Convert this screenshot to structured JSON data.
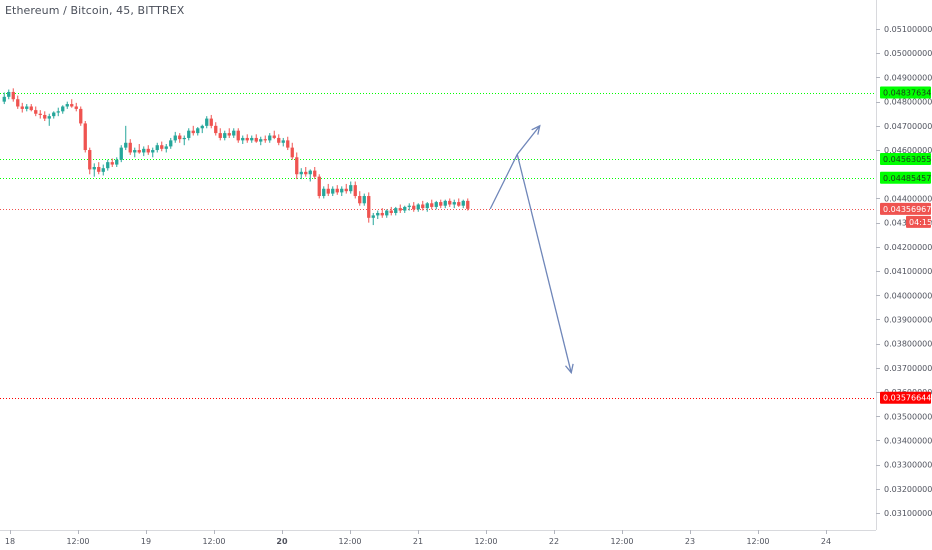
{
  "header": {
    "title": "Ethereum / Bitcoin, 45, BITTREX"
  },
  "colors": {
    "up": "#26a69a",
    "down": "#ef5350",
    "green_level": "#00ff00",
    "red_level": "#ff0000",
    "last_price": "#ef5350",
    "projection": "#6f86b9"
  },
  "chart_data": {
    "type": "candlestick",
    "title": "Ethereum / Bitcoin, 45, BITTREX",
    "ylim": [
      0.0303,
      0.0522
    ],
    "y_ticks": [
      "0.05100000",
      "0.05000000",
      "0.04900000",
      "0.04800000",
      "0.04700000",
      "0.04600000",
      "0.04400000",
      "0.04300000",
      "0.04200000",
      "0.04100000",
      "0.04000000",
      "0.03900000",
      "0.03800000",
      "0.03700000",
      "0.03600000",
      "0.03500000",
      "0.03400000",
      "0.03300000",
      "0.03200000",
      "0.03100000"
    ],
    "x_ticks": [
      {
        "label": "18",
        "bold": false
      },
      {
        "label": "12:00",
        "bold": false
      },
      {
        "label": "19",
        "bold": false
      },
      {
        "label": "12:00",
        "bold": false
      },
      {
        "label": "20",
        "bold": true
      },
      {
        "label": "12:00",
        "bold": false
      },
      {
        "label": "21",
        "bold": false
      },
      {
        "label": "12:00",
        "bold": false
      },
      {
        "label": "22",
        "bold": false
      },
      {
        "label": "12:00",
        "bold": false
      },
      {
        "label": "23",
        "bold": false
      },
      {
        "label": "12:00",
        "bold": false
      },
      {
        "label": "24",
        "bold": false
      }
    ],
    "horizontal_levels": [
      {
        "value": "0.04837634",
        "numeric": 0.04837634,
        "color": "green"
      },
      {
        "value": "0.04563055",
        "numeric": 0.04563055,
        "color": "green"
      },
      {
        "value": "0.04485457",
        "numeric": 0.04485457,
        "color": "green"
      },
      {
        "value": "0.03576644",
        "numeric": 0.03576644,
        "color": "red"
      }
    ],
    "last_price": {
      "value": "0.04356967",
      "numeric": 0.04356967,
      "countdown": "04:15"
    },
    "projection_path": [
      {
        "bar": 108,
        "price": 0.04357
      },
      {
        "bar": 114,
        "price": 0.04582
      },
      {
        "bar": 119,
        "price": 0.047
      },
      {
        "bar": 114,
        "price": 0.04582
      },
      {
        "bar": 126,
        "price": 0.0368
      }
    ],
    "series": [
      {
        "o": 0.048,
        "h": 0.04838,
        "l": 0.0479,
        "c": 0.0482
      },
      {
        "o": 0.0482,
        "h": 0.0485,
        "l": 0.0481,
        "c": 0.0484
      },
      {
        "o": 0.0484,
        "h": 0.04855,
        "l": 0.048,
        "c": 0.0481
      },
      {
        "o": 0.0481,
        "h": 0.04825,
        "l": 0.0477,
        "c": 0.0478
      },
      {
        "o": 0.0478,
        "h": 0.04795,
        "l": 0.04755,
        "c": 0.0477
      },
      {
        "o": 0.0477,
        "h": 0.0479,
        "l": 0.0476,
        "c": 0.0478
      },
      {
        "o": 0.0478,
        "h": 0.0479,
        "l": 0.0476,
        "c": 0.04765
      },
      {
        "o": 0.04765,
        "h": 0.0478,
        "l": 0.0474,
        "c": 0.0475
      },
      {
        "o": 0.0475,
        "h": 0.04765,
        "l": 0.0473,
        "c": 0.04745
      },
      {
        "o": 0.04745,
        "h": 0.0476,
        "l": 0.0472,
        "c": 0.0473
      },
      {
        "o": 0.0473,
        "h": 0.0475,
        "l": 0.047,
        "c": 0.0474
      },
      {
        "o": 0.0474,
        "h": 0.0476,
        "l": 0.0473,
        "c": 0.04755
      },
      {
        "o": 0.04755,
        "h": 0.04775,
        "l": 0.0474,
        "c": 0.0476
      },
      {
        "o": 0.0476,
        "h": 0.04785,
        "l": 0.0475,
        "c": 0.0478
      },
      {
        "o": 0.0478,
        "h": 0.048,
        "l": 0.0477,
        "c": 0.0479
      },
      {
        "o": 0.0479,
        "h": 0.0481,
        "l": 0.04775,
        "c": 0.0478
      },
      {
        "o": 0.0478,
        "h": 0.04795,
        "l": 0.0476,
        "c": 0.0477
      },
      {
        "o": 0.0477,
        "h": 0.0478,
        "l": 0.047,
        "c": 0.0471
      },
      {
        "o": 0.0471,
        "h": 0.0472,
        "l": 0.0459,
        "c": 0.046
      },
      {
        "o": 0.046,
        "h": 0.0461,
        "l": 0.045,
        "c": 0.0452
      },
      {
        "o": 0.0452,
        "h": 0.04545,
        "l": 0.0449,
        "c": 0.0453
      },
      {
        "o": 0.0453,
        "h": 0.0455,
        "l": 0.045,
        "c": 0.0451
      },
      {
        "o": 0.0451,
        "h": 0.0454,
        "l": 0.04495,
        "c": 0.04525
      },
      {
        "o": 0.04525,
        "h": 0.0456,
        "l": 0.04515,
        "c": 0.0455
      },
      {
        "o": 0.0455,
        "h": 0.04565,
        "l": 0.0453,
        "c": 0.0454
      },
      {
        "o": 0.0454,
        "h": 0.0457,
        "l": 0.0453,
        "c": 0.0456
      },
      {
        "o": 0.0456,
        "h": 0.0462,
        "l": 0.0455,
        "c": 0.0461
      },
      {
        "o": 0.0461,
        "h": 0.047,
        "l": 0.046,
        "c": 0.0463
      },
      {
        "o": 0.0463,
        "h": 0.04645,
        "l": 0.0458,
        "c": 0.0459
      },
      {
        "o": 0.0459,
        "h": 0.0461,
        "l": 0.0457,
        "c": 0.046
      },
      {
        "o": 0.046,
        "h": 0.04625,
        "l": 0.04585,
        "c": 0.0459
      },
      {
        "o": 0.0459,
        "h": 0.04615,
        "l": 0.04575,
        "c": 0.04605
      },
      {
        "o": 0.04605,
        "h": 0.0462,
        "l": 0.0458,
        "c": 0.0459
      },
      {
        "o": 0.0459,
        "h": 0.0461,
        "l": 0.0457,
        "c": 0.046
      },
      {
        "o": 0.046,
        "h": 0.0463,
        "l": 0.0459,
        "c": 0.0462
      },
      {
        "o": 0.0462,
        "h": 0.04635,
        "l": 0.04595,
        "c": 0.04605
      },
      {
        "o": 0.04605,
        "h": 0.04625,
        "l": 0.0459,
        "c": 0.04615
      },
      {
        "o": 0.04615,
        "h": 0.0465,
        "l": 0.04605,
        "c": 0.0464
      },
      {
        "o": 0.0464,
        "h": 0.04675,
        "l": 0.0463,
        "c": 0.0466
      },
      {
        "o": 0.0466,
        "h": 0.0467,
        "l": 0.0463,
        "c": 0.04645
      },
      {
        "o": 0.04645,
        "h": 0.0466,
        "l": 0.0462,
        "c": 0.0465
      },
      {
        "o": 0.0465,
        "h": 0.0469,
        "l": 0.0464,
        "c": 0.0468
      },
      {
        "o": 0.0468,
        "h": 0.047,
        "l": 0.0466,
        "c": 0.0467
      },
      {
        "o": 0.0467,
        "h": 0.04695,
        "l": 0.0466,
        "c": 0.0469
      },
      {
        "o": 0.0469,
        "h": 0.04705,
        "l": 0.0467,
        "c": 0.047
      },
      {
        "o": 0.047,
        "h": 0.0474,
        "l": 0.0469,
        "c": 0.0473
      },
      {
        "o": 0.0473,
        "h": 0.04745,
        "l": 0.0469,
        "c": 0.047
      },
      {
        "o": 0.047,
        "h": 0.04715,
        "l": 0.0466,
        "c": 0.0467
      },
      {
        "o": 0.0467,
        "h": 0.0469,
        "l": 0.0464,
        "c": 0.0465
      },
      {
        "o": 0.0465,
        "h": 0.0468,
        "l": 0.0464,
        "c": 0.0467
      },
      {
        "o": 0.0467,
        "h": 0.0469,
        "l": 0.0465,
        "c": 0.0466
      },
      {
        "o": 0.0466,
        "h": 0.0469,
        "l": 0.0465,
        "c": 0.0468
      },
      {
        "o": 0.0468,
        "h": 0.0469,
        "l": 0.0463,
        "c": 0.0464
      },
      {
        "o": 0.0464,
        "h": 0.0466,
        "l": 0.04625,
        "c": 0.0465
      },
      {
        "o": 0.0465,
        "h": 0.04665,
        "l": 0.0463,
        "c": 0.0464
      },
      {
        "o": 0.0464,
        "h": 0.0466,
        "l": 0.0463,
        "c": 0.0465
      },
      {
        "o": 0.0465,
        "h": 0.04665,
        "l": 0.0463,
        "c": 0.04635
      },
      {
        "o": 0.04635,
        "h": 0.04655,
        "l": 0.0462,
        "c": 0.04645
      },
      {
        "o": 0.04645,
        "h": 0.0466,
        "l": 0.0463,
        "c": 0.0464
      },
      {
        "o": 0.0464,
        "h": 0.0467,
        "l": 0.0463,
        "c": 0.0466
      },
      {
        "o": 0.0466,
        "h": 0.0468,
        "l": 0.04645,
        "c": 0.0465
      },
      {
        "o": 0.0465,
        "h": 0.04665,
        "l": 0.0462,
        "c": 0.0463
      },
      {
        "o": 0.0463,
        "h": 0.0465,
        "l": 0.04615,
        "c": 0.0464
      },
      {
        "o": 0.0464,
        "h": 0.04655,
        "l": 0.046,
        "c": 0.0461
      },
      {
        "o": 0.0461,
        "h": 0.0463,
        "l": 0.0456,
        "c": 0.0457
      },
      {
        "o": 0.0457,
        "h": 0.0459,
        "l": 0.0448,
        "c": 0.045
      },
      {
        "o": 0.045,
        "h": 0.04525,
        "l": 0.0448,
        "c": 0.0451
      },
      {
        "o": 0.0451,
        "h": 0.0453,
        "l": 0.0449,
        "c": 0.045
      },
      {
        "o": 0.045,
        "h": 0.0452,
        "l": 0.0447,
        "c": 0.04515
      },
      {
        "o": 0.04515,
        "h": 0.0453,
        "l": 0.0448,
        "c": 0.0449
      },
      {
        "o": 0.0449,
        "h": 0.045,
        "l": 0.044,
        "c": 0.0441
      },
      {
        "o": 0.0441,
        "h": 0.0445,
        "l": 0.044,
        "c": 0.0444
      },
      {
        "o": 0.0444,
        "h": 0.0446,
        "l": 0.0441,
        "c": 0.0442
      },
      {
        "o": 0.0442,
        "h": 0.0445,
        "l": 0.0441,
        "c": 0.0444
      },
      {
        "o": 0.0444,
        "h": 0.04455,
        "l": 0.04415,
        "c": 0.04425
      },
      {
        "o": 0.04425,
        "h": 0.0445,
        "l": 0.0441,
        "c": 0.0444
      },
      {
        "o": 0.0444,
        "h": 0.0446,
        "l": 0.0442,
        "c": 0.0443
      },
      {
        "o": 0.0443,
        "h": 0.0447,
        "l": 0.0442,
        "c": 0.04455
      },
      {
        "o": 0.04455,
        "h": 0.0447,
        "l": 0.044,
        "c": 0.0441
      },
      {
        "o": 0.0441,
        "h": 0.0443,
        "l": 0.0437,
        "c": 0.0438
      },
      {
        "o": 0.0438,
        "h": 0.0442,
        "l": 0.0437,
        "c": 0.0441
      },
      {
        "o": 0.0441,
        "h": 0.04425,
        "l": 0.043,
        "c": 0.0432
      },
      {
        "o": 0.0432,
        "h": 0.0434,
        "l": 0.0429,
        "c": 0.0433
      },
      {
        "o": 0.0433,
        "h": 0.0435,
        "l": 0.04315,
        "c": 0.0434
      },
      {
        "o": 0.0434,
        "h": 0.0436,
        "l": 0.0432,
        "c": 0.0433
      },
      {
        "o": 0.0433,
        "h": 0.04355,
        "l": 0.0432,
        "c": 0.0435
      },
      {
        "o": 0.0435,
        "h": 0.04365,
        "l": 0.0433,
        "c": 0.0434
      },
      {
        "o": 0.0434,
        "h": 0.04365,
        "l": 0.0433,
        "c": 0.0436
      },
      {
        "o": 0.0436,
        "h": 0.04375,
        "l": 0.0434,
        "c": 0.0435
      },
      {
        "o": 0.0435,
        "h": 0.0437,
        "l": 0.0434,
        "c": 0.04365
      },
      {
        "o": 0.04365,
        "h": 0.0438,
        "l": 0.0435,
        "c": 0.0437
      },
      {
        "o": 0.0437,
        "h": 0.04385,
        "l": 0.04345,
        "c": 0.04355
      },
      {
        "o": 0.04355,
        "h": 0.0438,
        "l": 0.04345,
        "c": 0.04375
      },
      {
        "o": 0.04375,
        "h": 0.0439,
        "l": 0.0435,
        "c": 0.0436
      },
      {
        "o": 0.0436,
        "h": 0.04385,
        "l": 0.04345,
        "c": 0.0438
      },
      {
        "o": 0.0438,
        "h": 0.04395,
        "l": 0.04355,
        "c": 0.04365
      },
      {
        "o": 0.04365,
        "h": 0.0439,
        "l": 0.04355,
        "c": 0.04385
      },
      {
        "o": 0.04385,
        "h": 0.04395,
        "l": 0.0436,
        "c": 0.0437
      },
      {
        "o": 0.0437,
        "h": 0.04395,
        "l": 0.0436,
        "c": 0.0439
      },
      {
        "o": 0.0439,
        "h": 0.044,
        "l": 0.04365,
        "c": 0.04375
      },
      {
        "o": 0.04375,
        "h": 0.04395,
        "l": 0.0436,
        "c": 0.04385
      },
      {
        "o": 0.04385,
        "h": 0.044,
        "l": 0.04365,
        "c": 0.0437
      },
      {
        "o": 0.0437,
        "h": 0.04395,
        "l": 0.0436,
        "c": 0.0439
      },
      {
        "o": 0.0439,
        "h": 0.044,
        "l": 0.0435,
        "c": 0.04357
      }
    ]
  }
}
